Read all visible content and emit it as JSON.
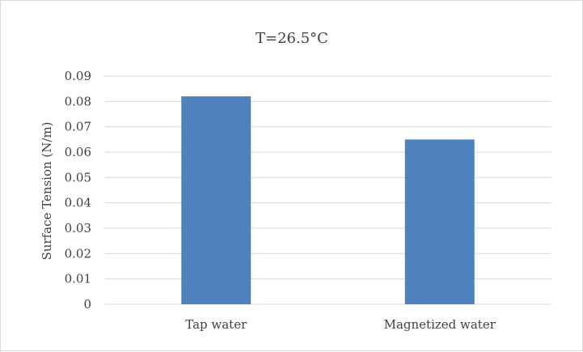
{
  "chart_data": {
    "type": "bar",
    "title": "T=26.5°C",
    "xlabel": "",
    "ylabel": "Surface Tension (N/m)",
    "categories": [
      "Tap water",
      "Magnetized water"
    ],
    "values": [
      0.082,
      0.065
    ],
    "ylim": [
      0,
      0.09
    ],
    "yticks": [
      "0",
      "0.01",
      "0.02",
      "0.03",
      "0.04",
      "0.05",
      "0.06",
      "0.07",
      "0.08",
      "0.09"
    ],
    "grid": true,
    "legend": "none",
    "bar_color": "#4f81bd",
    "grid_color": "#d9d9d9"
  }
}
